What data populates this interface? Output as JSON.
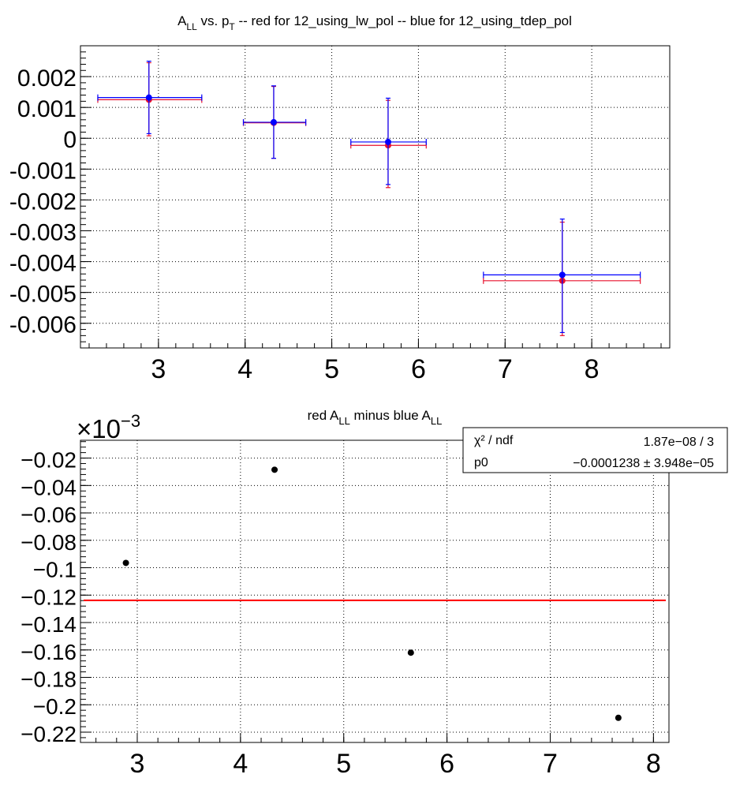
{
  "chart_data": [
    {
      "type": "scatter",
      "title": {
        "part1": "A",
        "sub1": "LL",
        "part2": " vs. p",
        "sub2": "T",
        "part3": " -- red for 12_using_lw_pol -- blue for 12_using_tdep_pol"
      },
      "xlim": [
        2.1,
        8.9
      ],
      "ylim": [
        -0.0068,
        0.003
      ],
      "x_ticks": [
        "3",
        "4",
        "5",
        "6",
        "7",
        "8"
      ],
      "y_ticks": [
        "0.002",
        "0.001",
        "0",
        "-0.001",
        "-0.002",
        "-0.003",
        "-0.004",
        "-0.005",
        "-0.006"
      ],
      "grid": true,
      "series": [
        {
          "color": "#e8112d",
          "points": [
            {
              "x": 2.89,
              "y": 0.00125,
              "xlow": 2.3,
              "xhigh": 3.5,
              "ylow": 8e-05,
              "yhigh": 0.00245
            },
            {
              "x": 4.33,
              "y": 0.0005,
              "xlow": 3.98,
              "xhigh": 4.7,
              "ylow": -0.00065,
              "yhigh": 0.00168
            },
            {
              "x": 5.65,
              "y": -0.00023,
              "xlow": 5.22,
              "xhigh": 6.09,
              "ylow": -0.0016,
              "yhigh": 0.00123
            },
            {
              "x": 7.66,
              "y": -0.00462,
              "xlow": 6.75,
              "xhigh": 8.56,
              "ylow": -0.0064,
              "yhigh": -0.00272
            }
          ]
        },
        {
          "color": "#0000ff",
          "points": [
            {
              "x": 2.89,
              "y": 0.00132,
              "xlow": 2.3,
              "xhigh": 3.5,
              "ylow": 0.00015,
              "yhigh": 0.0025
            },
            {
              "x": 4.33,
              "y": 0.00052,
              "xlow": 3.98,
              "xhigh": 4.7,
              "ylow": -0.00065,
              "yhigh": 0.0017
            },
            {
              "x": 5.65,
              "y": -0.00012,
              "xlow": 5.22,
              "xhigh": 6.09,
              "ylow": -0.0015,
              "yhigh": 0.0013
            },
            {
              "x": 7.66,
              "y": -0.00443,
              "xlow": 6.75,
              "xhigh": 8.56,
              "ylow": -0.0063,
              "yhigh": -0.00262
            }
          ]
        }
      ]
    },
    {
      "type": "scatter",
      "title": {
        "part1": "red A",
        "sub1": "LL",
        "part2": " minus blue A",
        "sub2": "LL"
      },
      "axis_multiplier": {
        "base": "×10",
        "exp": "−3"
      },
      "xlim": [
        2.45,
        8.15
      ],
      "ylim": [
        -0.2275,
        -0.007
      ],
      "x_ticks": [
        "3",
        "4",
        "5",
        "6",
        "7",
        "8"
      ],
      "y_ticks": [
        "−0.02",
        "−0.04",
        "−0.06",
        "−0.08",
        "−0.1",
        "−0.12",
        "−0.14",
        "−0.16",
        "−0.18",
        "−0.2",
        "−0.22"
      ],
      "grid": true,
      "points": [
        {
          "x": 2.89,
          "y": -0.0965
        },
        {
          "x": 4.33,
          "y": -0.0285
        },
        {
          "x": 5.65,
          "y": -0.162
        },
        {
          "x": 7.66,
          "y": -0.2095
        }
      ],
      "fit": {
        "y": -0.1238,
        "color": "#ff0000"
      },
      "stats": {
        "chi2_label": "χ² / ndf",
        "chi2_value": "1.87e−08 / 3",
        "p0_label": "p0",
        "p0_value": "−0.0001238 ± 3.948e−05"
      }
    }
  ]
}
